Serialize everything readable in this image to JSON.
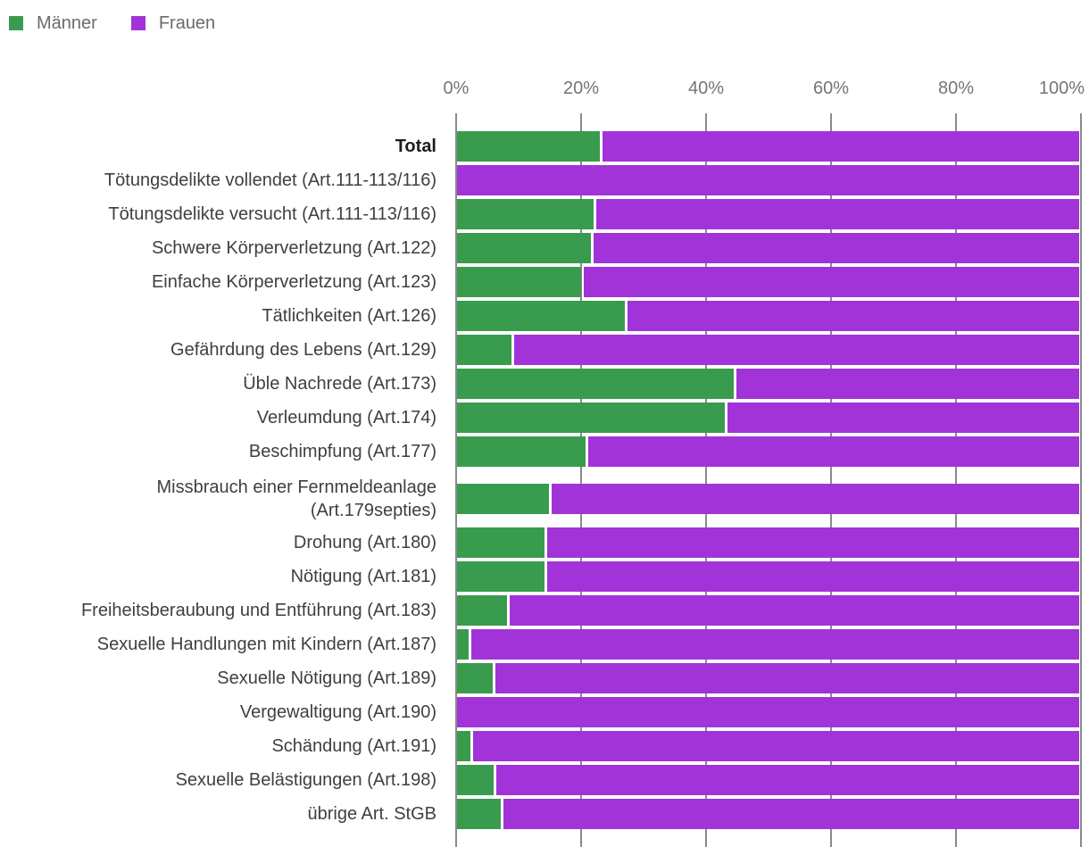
{
  "legend": {
    "items": [
      {
        "label": "Männer",
        "color": "#399b4e",
        "icon": "green-square-swatch"
      },
      {
        "label": "Frauen",
        "color": "#a233d9",
        "icon": "purple-square-swatch"
      }
    ]
  },
  "axis": {
    "ticks": [
      "0%",
      "20%",
      "40%",
      "60%",
      "80%",
      "100%"
    ],
    "gridline_color": "#8a8a8a"
  },
  "chart_data": {
    "type": "bar",
    "orientation": "horizontal",
    "stacked": true,
    "unit": "%",
    "title": "",
    "xlabel": "",
    "ylabel": "",
    "xlim": [
      0,
      100
    ],
    "grid": true,
    "legend_position": "top-left",
    "categories": [
      "Total",
      "Tötungsdelikte vollendet (Art.111-113/116)",
      "Tötungsdelikte versucht (Art.111-113/116)",
      "Schwere Körperverletzung (Art.122)",
      "Einfache Körperverletzung (Art.123)",
      "Tätlichkeiten (Art.126)",
      "Gefährdung des Lebens (Art.129)",
      "Üble Nachrede (Art.173)",
      "Verleumdung (Art.174)",
      "Beschimpfung (Art.177)",
      "Missbrauch einer Fernmeldeanlage\n(Art.179septies)",
      "Drohung (Art.180)",
      "Nötigung (Art.181)",
      "Freiheitsberaubung und Entführung (Art.183)",
      "Sexuelle Handlungen mit Kindern (Art.187)",
      "Sexuelle Nötigung (Art.189)",
      "Vergewaltigung (Art.190)",
      "Schändung (Art.191)",
      "Sexuelle Belästigungen (Art.198)",
      "übrige Art. StGB"
    ],
    "series": [
      {
        "name": "Männer",
        "color": "#399b4e",
        "values": [
          23,
          0,
          22,
          21.5,
          20,
          27,
          8.7,
          44.5,
          43,
          20.7,
          14.8,
          14,
          14,
          8,
          1.8,
          5.8,
          0,
          2.2,
          5.9,
          7
        ]
      },
      {
        "name": "Frauen",
        "color": "#a233d9",
        "values": [
          77,
          100,
          78,
          78.5,
          80,
          73,
          91.3,
          55.5,
          57,
          79.3,
          85.2,
          86,
          86,
          92,
          98.2,
          94.2,
          100,
          97.8,
          94.1,
          93
        ]
      }
    ],
    "bold_categories": [
      "Total"
    ]
  }
}
